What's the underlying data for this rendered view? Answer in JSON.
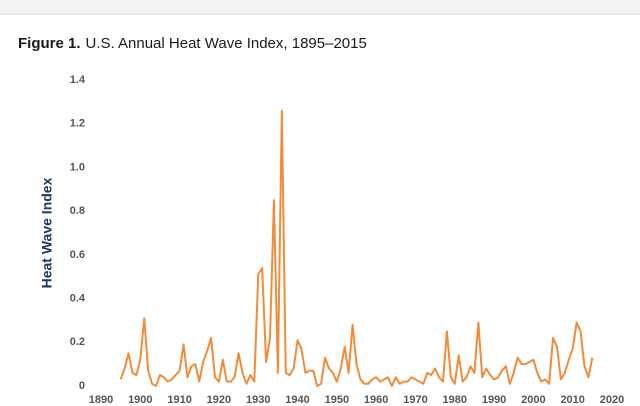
{
  "chart_data": {
    "type": "line",
    "title_label": "Figure 1.",
    "title": "U.S. Annual Heat Wave Index, 1895–2015",
    "y_label": "Heat Wave Index",
    "x": [
      1895,
      1896,
      1897,
      1898,
      1899,
      1900,
      1901,
      1902,
      1903,
      1904,
      1905,
      1906,
      1907,
      1908,
      1909,
      1910,
      1911,
      1912,
      1913,
      1914,
      1915,
      1916,
      1917,
      1918,
      1919,
      1920,
      1921,
      1922,
      1923,
      1924,
      1925,
      1926,
      1927,
      1928,
      1929,
      1930,
      1931,
      1932,
      1933,
      1934,
      1935,
      1936,
      1937,
      1938,
      1939,
      1940,
      1941,
      1942,
      1943,
      1944,
      1945,
      1946,
      1947,
      1948,
      1949,
      1950,
      1951,
      1952,
      1953,
      1954,
      1955,
      1956,
      1957,
      1958,
      1959,
      1960,
      1961,
      1962,
      1963,
      1964,
      1965,
      1966,
      1967,
      1968,
      1969,
      1970,
      1971,
      1972,
      1973,
      1974,
      1975,
      1976,
      1977,
      1978,
      1979,
      1980,
      1981,
      1982,
      1983,
      1984,
      1985,
      1986,
      1987,
      1988,
      1989,
      1990,
      1991,
      1992,
      1993,
      1994,
      1995,
      1996,
      1997,
      1998,
      1999,
      2000,
      2001,
      2002,
      2003,
      2004,
      2005,
      2006,
      2007,
      2008,
      2009,
      2010,
      2011,
      2012,
      2013,
      2014,
      2015
    ],
    "series": [
      {
        "name": "Heat Wave Index",
        "color": "#f28c3a",
        "values": [
          0.03,
          0.08,
          0.15,
          0.06,
          0.05,
          0.12,
          0.31,
          0.07,
          0.01,
          0.0,
          0.05,
          0.04,
          0.02,
          0.03,
          0.05,
          0.07,
          0.19,
          0.04,
          0.09,
          0.1,
          0.02,
          0.11,
          0.16,
          0.22,
          0.04,
          0.02,
          0.12,
          0.02,
          0.02,
          0.04,
          0.15,
          0.06,
          0.01,
          0.05,
          0.02,
          0.51,
          0.54,
          0.11,
          0.22,
          0.85,
          0.06,
          1.26,
          0.06,
          0.05,
          0.08,
          0.21,
          0.17,
          0.06,
          0.07,
          0.07,
          0.0,
          0.01,
          0.13,
          0.08,
          0.06,
          0.02,
          0.08,
          0.18,
          0.06,
          0.28,
          0.1,
          0.03,
          0.01,
          0.01,
          0.03,
          0.04,
          0.02,
          0.03,
          0.04,
          0.0,
          0.04,
          0.01,
          0.02,
          0.02,
          0.04,
          0.03,
          0.02,
          0.01,
          0.06,
          0.05,
          0.08,
          0.04,
          0.02,
          0.25,
          0.04,
          0.01,
          0.14,
          0.02,
          0.04,
          0.09,
          0.06,
          0.29,
          0.04,
          0.08,
          0.05,
          0.03,
          0.04,
          0.07,
          0.09,
          0.01,
          0.06,
          0.13,
          0.1,
          0.1,
          0.11,
          0.12,
          0.06,
          0.02,
          0.03,
          0.01,
          0.22,
          0.18,
          0.03,
          0.06,
          0.12,
          0.17,
          0.29,
          0.25,
          0.09,
          0.04,
          0.13
        ]
      }
    ],
    "xlim": [
      1890,
      2020
    ],
    "xticks": [
      1890,
      1900,
      1910,
      1920,
      1930,
      1940,
      1950,
      1960,
      1970,
      1980,
      1990,
      2000,
      2010,
      2020
    ],
    "ylim": [
      0,
      1.4
    ],
    "yticks": [
      0,
      0.2,
      0.4,
      0.6,
      0.8,
      {
        "value": 1,
        "label": "1.0"
      },
      1.2,
      1.4
    ],
    "grid": false
  }
}
